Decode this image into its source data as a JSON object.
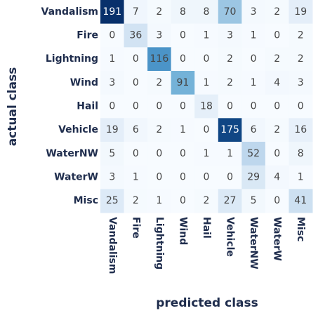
{
  "chart_data": {
    "type": "heatmap",
    "xlabel": "predicted class",
    "ylabel": "actual class",
    "categories": [
      "Vandalism",
      "Fire",
      "Lightning",
      "Wind",
      "Hail",
      "Vehicle",
      "WaterNW",
      "WaterW",
      "Misc"
    ],
    "values": [
      [
        191,
        7,
        2,
        8,
        8,
        70,
        3,
        2,
        19
      ],
      [
        0,
        36,
        3,
        0,
        1,
        3,
        1,
        0,
        2
      ],
      [
        1,
        0,
        116,
        0,
        0,
        2,
        0,
        2,
        2
      ],
      [
        3,
        0,
        2,
        91,
        1,
        2,
        1,
        4,
        3
      ],
      [
        0,
        0,
        0,
        0,
        18,
        0,
        0,
        0,
        0
      ],
      [
        19,
        6,
        2,
        1,
        0,
        175,
        6,
        2,
        16
      ],
      [
        5,
        0,
        0,
        0,
        1,
        1,
        52,
        0,
        8
      ],
      [
        3,
        1,
        0,
        0,
        0,
        0,
        29,
        4,
        1
      ],
      [
        25,
        2,
        1,
        0,
        2,
        27,
        5,
        0,
        41
      ]
    ],
    "colorscale": [
      "#f7fbff",
      "#c6dbef",
      "#6baed6",
      "#2171b5",
      "#08306b"
    ]
  }
}
